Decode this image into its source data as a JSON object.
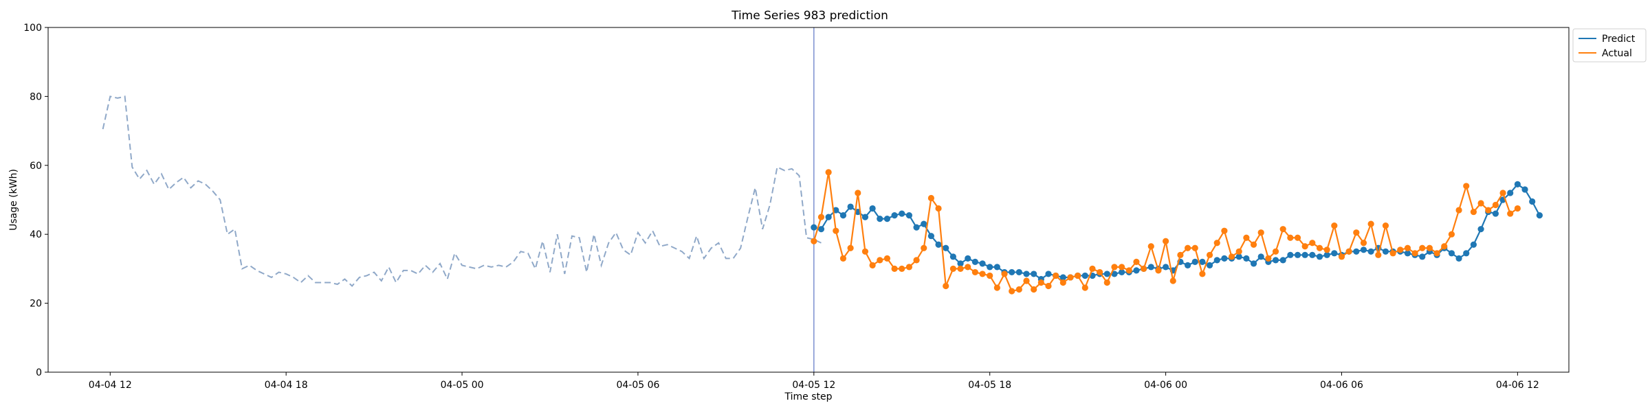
{
  "chart_data": {
    "type": "line",
    "title": "Time Series 983 prediction",
    "xlabel": "Time step",
    "ylabel": "Usage (kWh)",
    "ylim": [
      0,
      100
    ],
    "yticks": [
      0,
      20,
      40,
      60,
      80,
      100
    ],
    "xlim": [
      "2024-04-04 09:53",
      "2024-04-06 13:45"
    ],
    "xticks": [
      {
        "t": "2024-04-04 12:00",
        "label": "04-04 12"
      },
      {
        "t": "2024-04-04 18:00",
        "label": "04-04 18"
      },
      {
        "t": "2024-04-05 00:00",
        "label": "04-05 00"
      },
      {
        "t": "2024-04-05 06:00",
        "label": "04-05 06"
      },
      {
        "t": "2024-04-05 12:00",
        "label": "04-05 12"
      },
      {
        "t": "2024-04-05 18:00",
        "label": "04-05 18"
      },
      {
        "t": "2024-04-06 00:00",
        "label": "04-06 00"
      },
      {
        "t": "2024-04-06 06:00",
        "label": "04-06 06"
      },
      {
        "t": "2024-04-06 12:00",
        "label": "04-06 12"
      }
    ],
    "grid": false,
    "legend_position": "upper-right-outside",
    "forecast_start": "2024-04-05 12:00",
    "history": {
      "start": "2024-04-04 11:45",
      "step_minutes": 15,
      "style": "dashed",
      "color": "#8fa8c8",
      "values": [
        70.5,
        80.0,
        79.5,
        80.0,
        59.5,
        56.0,
        58.5,
        54.5,
        57.5,
        53.0,
        55.0,
        56.5,
        53.5,
        55.5,
        54.5,
        52.5,
        50.0,
        40.0,
        41.5,
        30.0,
        31.0,
        29.5,
        28.5,
        27.5,
        29.0,
        28.5,
        27.5,
        26.0,
        28.0,
        26.0,
        26.0,
        26.0,
        25.5,
        27.0,
        25.0,
        27.5,
        28.0,
        29.0,
        26.5,
        30.5,
        26.0,
        29.5,
        29.5,
        28.5,
        31.0,
        29.0,
        31.5,
        27.0,
        34.5,
        31.0,
        30.5,
        30.0,
        31.0,
        30.5,
        31.0,
        30.5,
        32.0,
        35.0,
        34.5,
        30.0,
        38.0,
        29.0,
        40.0,
        28.5,
        39.5,
        39.0,
        29.0,
        40.0,
        31.0,
        37.5,
        40.5,
        35.5,
        34.0,
        40.5,
        37.5,
        41.0,
        36.5,
        37.0,
        36.0,
        35.0,
        33.0,
        39.5,
        33.0,
        36.0,
        37.5,
        33.0,
        33.0,
        36.0,
        45.0,
        53.5,
        41.5,
        48.5,
        59.5,
        58.5,
        59.0,
        57.0,
        39.0,
        38.5,
        37.5
      ]
    },
    "series": [
      {
        "name": "Predict",
        "color": "#1f77b4",
        "start": "2024-04-05 12:00",
        "step_minutes": 15,
        "values": [
          42.0,
          41.5,
          45.0,
          47.0,
          45.5,
          48.0,
          46.5,
          45.0,
          47.5,
          44.5,
          44.5,
          45.5,
          46.0,
          45.5,
          42.0,
          43.0,
          39.5,
          37.0,
          36.0,
          33.5,
          31.5,
          33.0,
          32.0,
          31.5,
          30.5,
          30.5,
          29.0,
          29.0,
          29.0,
          28.5,
          28.5,
          27.0,
          28.5,
          28.0,
          27.5,
          27.5,
          28.0,
          28.0,
          28.0,
          28.5,
          28.5,
          28.5,
          29.0,
          29.0,
          29.5,
          30.0,
          30.5,
          30.0,
          30.5,
          29.5,
          32.0,
          31.0,
          32.0,
          32.0,
          31.0,
          32.5,
          33.0,
          33.0,
          33.5,
          33.0,
          31.5,
          33.5,
          32.0,
          32.5,
          32.5,
          34.0,
          34.0,
          34.0,
          34.0,
          33.5,
          34.0,
          34.5,
          34.0,
          35.0,
          35.0,
          35.5,
          35.0,
          36.0,
          35.0,
          35.0,
          35.0,
          34.5,
          34.0,
          33.5,
          35.0,
          34.0,
          36.0,
          34.5,
          33.0,
          34.5,
          37.0,
          41.5,
          46.5,
          46.0,
          50.0,
          52.0,
          54.5,
          53.0,
          49.5,
          45.5
        ]
      },
      {
        "name": "Actual",
        "color": "#ff7f0e",
        "start": "2024-04-05 12:00",
        "step_minutes": 15,
        "values": [
          38.0,
          45.0,
          58.0,
          41.0,
          33.0,
          36.0,
          52.0,
          35.0,
          31.0,
          32.5,
          33.0,
          30.0,
          30.0,
          30.5,
          32.5,
          36.0,
          50.5,
          47.5,
          25.0,
          30.0,
          30.0,
          30.5,
          29.0,
          28.5,
          28.0,
          24.5,
          28.5,
          23.5,
          24.0,
          26.5,
          24.0,
          26.0,
          25.0,
          28.0,
          26.0,
          27.5,
          28.0,
          24.5,
          30.0,
          29.0,
          26.0,
          30.5,
          30.5,
          29.5,
          32.0,
          30.0,
          36.5,
          29.5,
          38.0,
          26.5,
          34.0,
          36.0,
          36.0,
          28.5,
          34.0,
          37.5,
          41.0,
          33.5,
          35.0,
          39.0,
          37.0,
          40.5,
          33.0,
          35.0,
          41.5,
          39.0,
          39.0,
          36.5,
          37.5,
          36.0,
          35.5,
          42.5,
          33.5,
          35.0,
          40.5,
          37.5,
          43.0,
          34.0,
          42.5,
          34.5,
          35.5,
          36.0,
          34.5,
          36.0,
          36.0,
          34.5,
          36.5,
          40.0,
          47.0,
          54.0,
          46.5,
          49.0,
          47.0,
          48.5,
          52.0,
          46.0,
          47.5
        ]
      }
    ]
  }
}
